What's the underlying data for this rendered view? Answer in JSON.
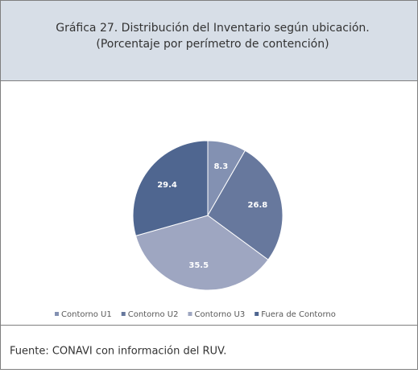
{
  "chart_data": {
    "type": "pie",
    "title": "Gráfica 27. Distribución del Inventario según ubicación.",
    "subtitle": "(Porcentaje por perímetro de contención)",
    "categories": [
      "Contorno U1",
      "Contorno U2",
      "Contorno U3",
      "Fuera de Contorno"
    ],
    "values": [
      8.3,
      26.8,
      35.5,
      29.4
    ],
    "colors": [
      "#8391b2",
      "#67789d",
      "#9ea6c1",
      "#4f6690"
    ],
    "legend": "bottom",
    "source": "Fuente: CONAVI con información del RUV."
  }
}
